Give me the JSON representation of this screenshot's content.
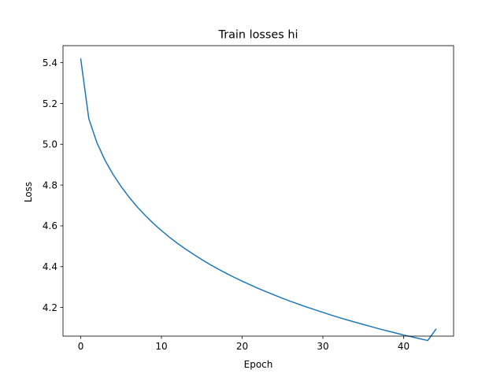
{
  "chart_data": {
    "type": "line",
    "title": "Train losses hi",
    "xlabel": "Epoch",
    "ylabel": "Loss",
    "xlim": [
      -2.2,
      46.2
    ],
    "ylim": [
      4.0595,
      5.4835
    ],
    "xticks": [
      0,
      10,
      20,
      30,
      40
    ],
    "yticks": [
      4.2,
      4.4,
      4.6,
      4.8,
      5.0,
      5.2,
      5.4
    ],
    "xtick_labels": [
      "0",
      "10",
      "20",
      "30",
      "40"
    ],
    "ytick_labels": [
      "4.2",
      "4.4",
      "4.6",
      "4.8",
      "5.0",
      "5.2",
      "5.4"
    ],
    "grid": false,
    "series": [
      {
        "color": "#1f77b4",
        "x": [
          0,
          1,
          2,
          3,
          4,
          5,
          6,
          7,
          8,
          9,
          10,
          11,
          12,
          13,
          14,
          15,
          16,
          17,
          18,
          19,
          20,
          21,
          22,
          23,
          24,
          25,
          26,
          27,
          28,
          29,
          30,
          31,
          32,
          33,
          34,
          35,
          36,
          37,
          38,
          39,
          40,
          41,
          42,
          43,
          44
        ],
        "y": [
          5.418,
          5.125,
          5.008,
          4.922,
          4.852,
          4.793,
          4.74,
          4.693,
          4.651,
          4.612,
          4.577,
          4.544,
          4.514,
          4.486,
          4.46,
          4.435,
          4.411,
          4.389,
          4.368,
          4.348,
          4.329,
          4.311,
          4.293,
          4.277,
          4.261,
          4.245,
          4.23,
          4.216,
          4.202,
          4.189,
          4.176,
          4.163,
          4.151,
          4.139,
          4.128,
          4.117,
          4.106,
          4.095,
          4.085,
          4.075,
          4.065,
          4.056,
          4.047,
          4.038,
          4.093
        ]
      }
    ]
  }
}
